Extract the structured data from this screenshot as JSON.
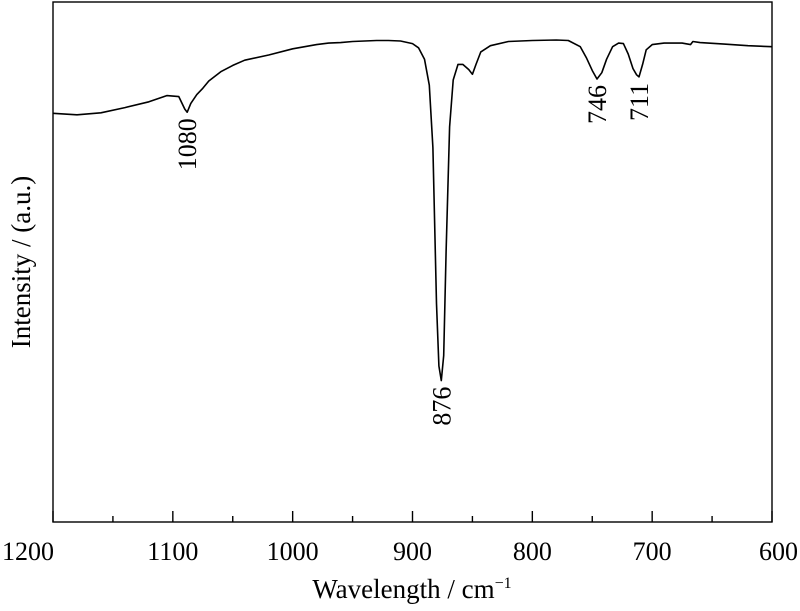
{
  "chart_data": {
    "type": "line",
    "title": "",
    "xlabel": "Wavelength / cm",
    "xlabel_sup": "−1",
    "ylabel": "Intensity / (a.u.)",
    "xlim": [
      1200,
      600
    ],
    "x_reversed": true,
    "ylim": [
      0,
      1
    ],
    "y_ticks_shown": false,
    "grid": false,
    "legend": "none",
    "x_ticks": [
      1200,
      1100,
      1000,
      900,
      800,
      700,
      600
    ],
    "x_tick_labels": [
      "1200",
      "1100",
      "1000",
      "900",
      "800",
      "700",
      "600"
    ],
    "series": [
      {
        "color": "#000000",
        "points": [
          [
            1200,
            0.786
          ],
          [
            1180,
            0.783
          ],
          [
            1160,
            0.787
          ],
          [
            1140,
            0.797
          ],
          [
            1120,
            0.808
          ],
          [
            1105,
            0.82
          ],
          [
            1095,
            0.818
          ],
          [
            1090,
            0.794
          ],
          [
            1088,
            0.788
          ],
          [
            1085,
            0.805
          ],
          [
            1080,
            0.822
          ],
          [
            1075,
            0.834
          ],
          [
            1070,
            0.848
          ],
          [
            1060,
            0.866
          ],
          [
            1050,
            0.878
          ],
          [
            1040,
            0.888
          ],
          [
            1020,
            0.898
          ],
          [
            1000,
            0.91
          ],
          [
            980,
            0.918
          ],
          [
            970,
            0.921
          ],
          [
            960,
            0.922
          ],
          [
            950,
            0.924
          ],
          [
            930,
            0.926
          ],
          [
            920,
            0.926
          ],
          [
            910,
            0.925
          ],
          [
            900,
            0.92
          ],
          [
            895,
            0.912
          ],
          [
            890,
            0.89
          ],
          [
            886,
            0.84
          ],
          [
            883,
            0.72
          ],
          [
            880,
            0.42
          ],
          [
            878,
            0.3
          ],
          [
            876,
            0.272
          ],
          [
            874,
            0.32
          ],
          [
            872,
            0.52
          ],
          [
            869,
            0.76
          ],
          [
            866,
            0.85
          ],
          [
            862,
            0.88
          ],
          [
            858,
            0.88
          ],
          [
            853,
            0.87
          ],
          [
            850,
            0.861
          ],
          [
            847,
            0.88
          ],
          [
            843,
            0.904
          ],
          [
            835,
            0.916
          ],
          [
            820,
            0.924
          ],
          [
            800,
            0.926
          ],
          [
            780,
            0.927
          ],
          [
            770,
            0.926
          ],
          [
            760,
            0.914
          ],
          [
            755,
            0.893
          ],
          [
            750,
            0.868
          ],
          [
            746,
            0.852
          ],
          [
            742,
            0.864
          ],
          [
            738,
            0.89
          ],
          [
            733,
            0.914
          ],
          [
            728,
            0.921
          ],
          [
            724,
            0.92
          ],
          [
            720,
            0.9
          ],
          [
            716,
            0.872
          ],
          [
            713,
            0.86
          ],
          [
            711,
            0.856
          ],
          [
            708,
            0.88
          ],
          [
            705,
            0.908
          ],
          [
            700,
            0.918
          ],
          [
            690,
            0.921
          ],
          [
            675,
            0.921
          ],
          [
            668,
            0.918
          ],
          [
            666,
            0.924
          ],
          [
            660,
            0.922
          ],
          [
            640,
            0.919
          ],
          [
            620,
            0.916
          ],
          [
            600,
            0.914
          ]
        ]
      }
    ],
    "annotations": [
      {
        "text": "1080",
        "x": 1088,
        "y": 0.788
      },
      {
        "text": "876",
        "x": 876,
        "y": 0.272
      },
      {
        "text": "746",
        "x": 746,
        "y": 0.852
      },
      {
        "text": "711",
        "x": 711,
        "y": 0.856
      }
    ]
  }
}
